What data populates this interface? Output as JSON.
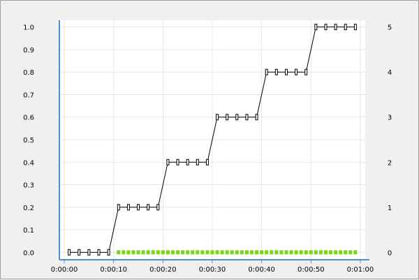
{
  "chart_data": {
    "type": "line",
    "x_axis": {
      "ticks": [
        0,
        10,
        20,
        30,
        40,
        50,
        60
      ],
      "tick_labels": [
        "0:00:00",
        "0:00:10",
        "0:00:20",
        "0:00:30",
        "0:00:40",
        "0:00:50",
        "0:01:00"
      ],
      "range_seconds": [
        -1,
        61
      ]
    },
    "y_axis_left": {
      "ticks": [
        0.0,
        0.1,
        0.2,
        0.3,
        0.4,
        0.5,
        0.6,
        0.7,
        0.8,
        0.9,
        1.0
      ],
      "tick_labels": [
        "0.0",
        "0.1",
        "0.2",
        "0.3",
        "0.4",
        "0.5",
        "0.6",
        "0.7",
        "0.8",
        "0.9",
        "1.0"
      ],
      "range": [
        -0.03,
        1.03
      ]
    },
    "y_axis_right": {
      "ticks": [
        0,
        1,
        2,
        3,
        4,
        5
      ],
      "tick_labels": [
        "0",
        "1",
        "2",
        "3",
        "4",
        "5"
      ],
      "range": [
        -0.15,
        5.15
      ]
    },
    "grid": true,
    "series": [
      {
        "axis": "right",
        "color": "#000000",
        "marker": "open-rectangle",
        "x": [
          1,
          3,
          5,
          7,
          9,
          11,
          13,
          15,
          17,
          19,
          21,
          23,
          25,
          27,
          29,
          31,
          33,
          35,
          37,
          39,
          41,
          43,
          45,
          47,
          49,
          51,
          53,
          55,
          57,
          59
        ],
        "y": [
          0,
          0,
          0,
          0,
          0,
          1,
          1,
          1,
          1,
          1,
          2,
          2,
          2,
          2,
          2,
          3,
          3,
          3,
          3,
          3,
          4,
          4,
          4,
          4,
          4,
          5,
          5,
          5,
          5,
          5
        ]
      },
      {
        "axis": "left",
        "color": "#7fd41e",
        "marker": "filled-square",
        "x": [
          11,
          12,
          13,
          14,
          15,
          16,
          17,
          18,
          19,
          20,
          21,
          22,
          23,
          24,
          25,
          26,
          27,
          28,
          29,
          30,
          31,
          32,
          33,
          34,
          35,
          36,
          37,
          38,
          39,
          40,
          41,
          42,
          43,
          44,
          45,
          46,
          47,
          48,
          49,
          50,
          51,
          52,
          53,
          54,
          55,
          56,
          57,
          58,
          59
        ],
        "y": [
          0,
          0,
          0,
          0,
          0,
          0,
          0,
          0,
          0,
          0,
          0,
          0,
          0,
          0,
          0,
          0,
          0,
          0,
          0,
          0,
          0,
          0,
          0,
          0,
          0,
          0,
          0,
          0,
          0,
          0,
          0,
          0,
          0,
          0,
          0,
          0,
          0,
          0,
          0,
          0,
          0,
          0,
          0,
          0,
          0,
          0,
          0,
          0,
          0
        ]
      }
    ]
  },
  "colors": {
    "grid": "#e8e8d8",
    "axis": "#4a90d9",
    "plot_background": "#ffffff",
    "page_background": "#f0f0f0"
  }
}
